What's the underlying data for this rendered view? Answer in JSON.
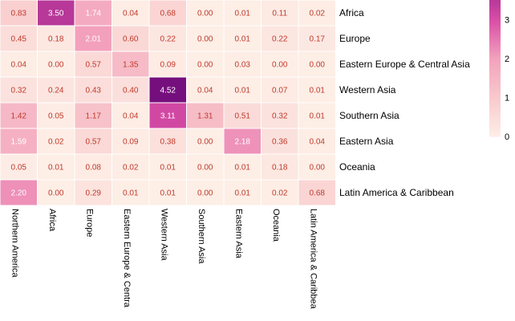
{
  "chart_data": {
    "type": "heatmap",
    "title": "",
    "xlabel": "",
    "ylabel": "",
    "rows": [
      "Africa",
      "Europe",
      "Eastern Europe & Central Asia",
      "Western Asia",
      "Southern Asia",
      "Eastern Asia",
      "Oceania",
      "Latin America & Caribbean"
    ],
    "columns": [
      "Northern America",
      "Africa",
      "Europe",
      "Eastern Europe & Centra",
      "Western Asia",
      "Southern Asia",
      "Eastern Asia",
      "Oceania",
      "Latin America & Caribbea"
    ],
    "values": [
      [
        0.83,
        3.5,
        1.74,
        0.04,
        0.68,
        0.0,
        0.01,
        0.11,
        0.02
      ],
      [
        0.45,
        0.18,
        2.01,
        0.6,
        0.22,
        0.0,
        0.01,
        0.22,
        0.17
      ],
      [
        0.04,
        0.0,
        0.57,
        1.35,
        0.09,
        0.0,
        0.03,
        0.0,
        0.0
      ],
      [
        0.32,
        0.24,
        0.43,
        0.4,
        4.52,
        0.04,
        0.01,
        0.07,
        0.01
      ],
      [
        1.42,
        0.05,
        1.17,
        0.04,
        3.11,
        1.31,
        0.51,
        0.32,
        0.01
      ],
      [
        1.59,
        0.02,
        0.57,
        0.09,
        0.38,
        0.0,
        2.18,
        0.36,
        0.04
      ],
      [
        0.05,
        0.01,
        0.08,
        0.02,
        0.01,
        0.0,
        0.01,
        0.18,
        0.0
      ],
      [
        2.2,
        0.0,
        0.29,
        0.01,
        0.01,
        0.0,
        0.01,
        0.02,
        0.68
      ]
    ],
    "value_labels": [
      [
        "0.83",
        "3.50",
        "1.74",
        "0.04",
        "0.68",
        "0.00",
        "0.01",
        "0.11",
        "0.02"
      ],
      [
        "0.45",
        "0.18",
        "2.01",
        "0.60",
        "0.22",
        "0.00",
        "0.01",
        "0.22",
        "0.17"
      ],
      [
        "0.04",
        "0.00",
        "0.57",
        "1.35",
        "0.09",
        "0.00",
        "0.03",
        "0.00",
        "0.00"
      ],
      [
        "0.32",
        "0.24",
        "0.43",
        "0.40",
        "4.52",
        "0.04",
        "0.01",
        "0.07",
        "0.01"
      ],
      [
        "1.42",
        "0.05",
        "1.17",
        "0.04",
        "3.11",
        "1.31",
        "0.51",
        "0.32",
        "0.01"
      ],
      [
        "1.59",
        "0.02",
        "0.57",
        "0.09",
        "0.38",
        "0.00",
        "2.18",
        "0.36",
        "0.04"
      ],
      [
        "0.05",
        "0.01",
        "0.08",
        "0.02",
        "0.01",
        "0.00",
        "0.01",
        "0.18",
        "0.00"
      ],
      [
        "2.20",
        "0.00",
        "0.29",
        "0.01",
        "0.01",
        "0.00",
        "0.01",
        "0.02",
        "0.68"
      ]
    ],
    "colorbar": {
      "ticks": [
        0,
        1,
        2,
        3
      ],
      "tick_labels": [
        "0",
        "1",
        "2",
        "3"
      ],
      "vmin": 0,
      "vmax": 3.5,
      "placement": "right"
    },
    "colors": {
      "low": "#fdeee6",
      "mid1": "#f8c9cc",
      "mid2": "#f3a1bd",
      "high1": "#d84da6",
      "max": "#750f7d",
      "label_dark": "#c0392b",
      "label_light": "#ffffff",
      "grid": "#ffffff"
    },
    "grid": false
  }
}
